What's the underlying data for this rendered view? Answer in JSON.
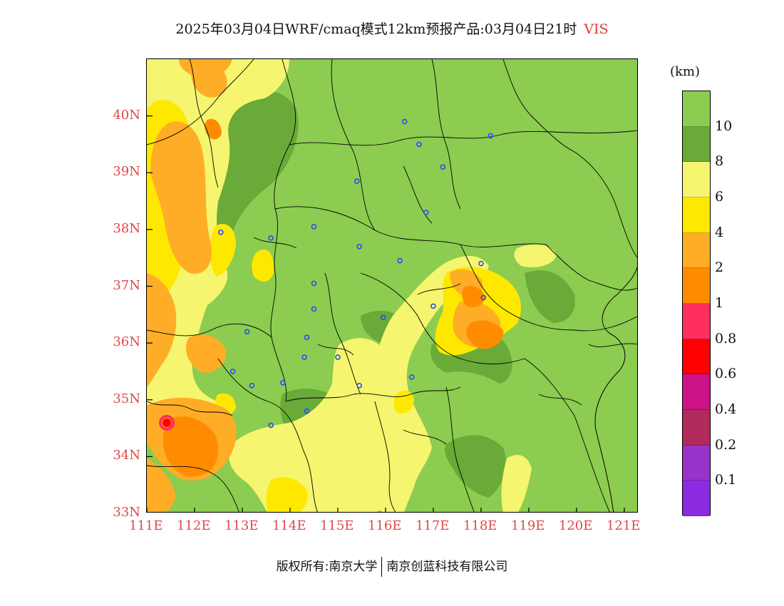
{
  "title": "2025年03月04日WRF/cmaq模式12km预报产品:03月04日21时",
  "variable": "VIS",
  "units": "(km)",
  "footer": {
    "left": "版权所有:南京大学",
    "right": "南京创蓝科技有限公司"
  },
  "lat_ticks": [
    "40N",
    "39N",
    "38N",
    "37N",
    "36N",
    "35N",
    "34N",
    "33N"
  ],
  "lon_ticks": [
    "111E",
    "112E",
    "113E",
    "114E",
    "115E",
    "116E",
    "117E",
    "118E",
    "119E",
    "120E",
    "121E"
  ],
  "colorbar": {
    "colors": [
      "#8ccc50",
      "#6aaa38",
      "#f5f570",
      "#ffe800",
      "#ffad26",
      "#ff8c00",
      "#ff2e5e",
      "#ff0000",
      "#cc1286",
      "#b02a5c",
      "#9933cc",
      "#8a2be2"
    ],
    "labels": [
      "10",
      "8",
      "6",
      "4",
      "2",
      "1",
      "0.8",
      "0.6",
      "0.4",
      "0.2",
      "0.1"
    ]
  },
  "map": {
    "extent_lon": [
      111,
      121.3
    ],
    "extent_lat": [
      33,
      41
    ],
    "stations": [
      [
        116.4,
        39.9
      ],
      [
        116.7,
        39.5
      ],
      [
        117.2,
        39.1
      ],
      [
        118.2,
        39.65
      ],
      [
        115.4,
        38.85
      ],
      [
        116.85,
        38.3
      ],
      [
        112.55,
        37.95
      ],
      [
        113.6,
        37.85
      ],
      [
        114.5,
        38.05
      ],
      [
        115.45,
        37.7
      ],
      [
        116.3,
        37.45
      ],
      [
        114.5,
        37.05
      ],
      [
        114.5,
        36.6
      ],
      [
        113.1,
        36.2
      ],
      [
        114.35,
        36.1
      ],
      [
        114.3,
        35.75
      ],
      [
        112.8,
        35.5
      ],
      [
        113.2,
        35.25
      ],
      [
        113.85,
        35.3
      ],
      [
        115.0,
        35.75
      ],
      [
        115.45,
        35.25
      ],
      [
        115.95,
        36.45
      ],
      [
        117.0,
        36.65
      ],
      [
        118.05,
        36.8
      ],
      [
        118.0,
        37.4
      ],
      [
        116.55,
        35.4
      ],
      [
        114.35,
        34.8
      ],
      [
        113.6,
        34.55
      ]
    ]
  }
}
